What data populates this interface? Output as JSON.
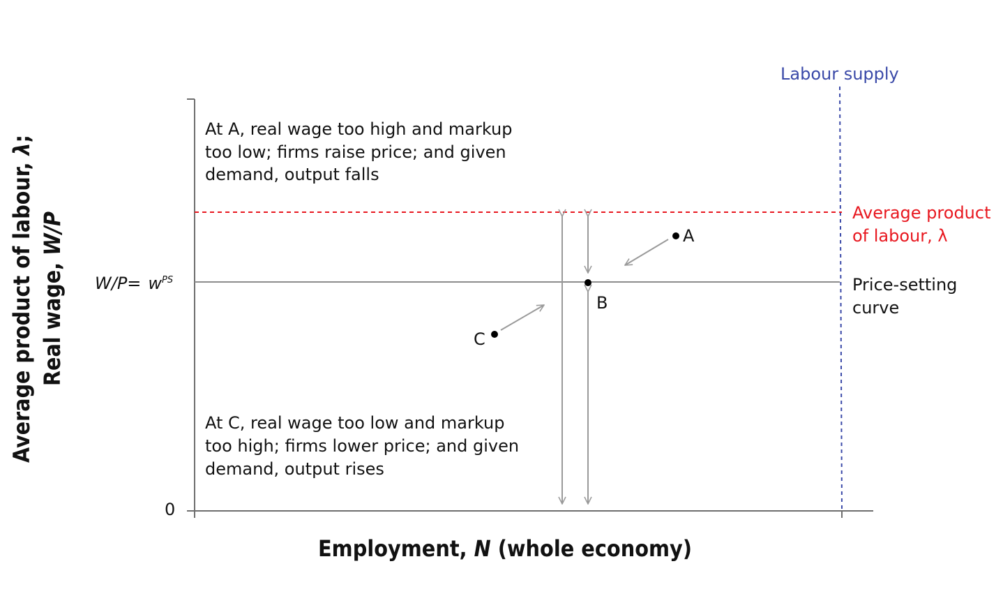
{
  "diagram": {
    "y_axis": {
      "title_line1_prefix": "Average product of labour, ",
      "title_line1_symbol": "λ",
      "title_line1_suffix": ";",
      "title_line2_prefix": "Real wage, ",
      "title_line2_symbol": "W/P",
      "origin_label": "0",
      "wps_label_prefix": "W/P",
      "wps_label_eq": "=",
      "wps_label_w": "w",
      "wps_label_sup": "PS"
    },
    "x_axis": {
      "title_prefix": "Employment, ",
      "title_symbol": "N",
      "title_suffix": " (whole economy)"
    },
    "curves": {
      "labour_supply": "Labour supply",
      "average_product_line1": "Average product",
      "average_product_line2": "of labour, λ",
      "price_setting_line1": "Price-setting",
      "price_setting_line2": "curve"
    },
    "points": {
      "a": "A",
      "b": "B",
      "c": "C"
    },
    "annotations": {
      "top": [
        "At A, real wage too high and markup",
        "too low; firms raise price; and given",
        "demand, output falls"
      ],
      "bottom": [
        "At C, real wage too low and markup",
        "too high; firms lower price; and given",
        "demand, output rises"
      ]
    },
    "colors": {
      "average_product": "#e8171f",
      "labour_supply": "#3a49a8",
      "price_setting": "#8c8c8c",
      "arrows": "#9a9a9a",
      "axes": "#6e6e6e"
    }
  }
}
